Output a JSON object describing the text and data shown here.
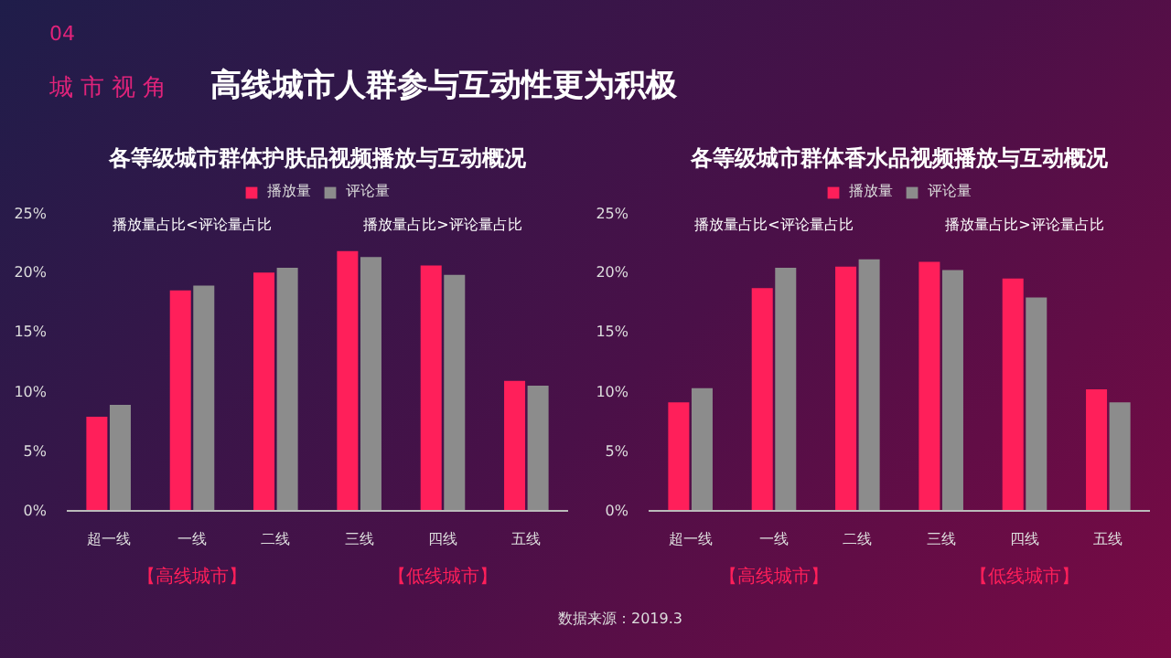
{
  "chart_data": [
    {
      "type": "other",
      "title": "高线城市人群参与互动性更为积极",
      "annotations": [
        "04",
        "城市视角"
      ]
    },
    {
      "type": "bar",
      "title": "各等级城市群体护肤品视频播放与互动概况",
      "categories": [
        "超一线",
        "一线",
        "二线",
        "三线",
        "四线",
        "五线"
      ],
      "series": [
        {
          "name": "播放量",
          "color": "#ff1f5a",
          "values": [
            7.9,
            18.5,
            20.0,
            21.8,
            20.6,
            10.9
          ]
        },
        {
          "name": "评论量",
          "color": "#8c8c8c",
          "values": [
            8.9,
            18.9,
            20.4,
            21.3,
            19.8,
            10.5
          ]
        }
      ],
      "ylim": [
        0,
        25
      ],
      "yticks": [
        {
          "value": 0,
          "label": "0%"
        },
        {
          "value": 5,
          "label": "5%"
        },
        {
          "value": 10,
          "label": "10%"
        },
        {
          "value": 15,
          "label": "15%"
        },
        {
          "value": 20,
          "label": "20%"
        },
        {
          "value": 25,
          "label": "25%"
        }
      ],
      "grid": false,
      "legend": "top",
      "annotations": [
        "播放量占比<评论量占比",
        "播放量占比>评论量占比",
        "【高线城市】",
        "【低线城市】"
      ]
    },
    {
      "type": "bar",
      "title": "各等级城市群体香水品视频播放与互动概况",
      "categories": [
        "超一线",
        "一线",
        "二线",
        "三线",
        "四线",
        "五线"
      ],
      "series": [
        {
          "name": "播放量",
          "color": "#ff1f5a",
          "values": [
            9.1,
            18.7,
            20.5,
            20.9,
            19.5,
            10.2
          ]
        },
        {
          "name": "评论量",
          "color": "#8c8c8c",
          "values": [
            10.3,
            20.4,
            21.1,
            20.2,
            17.9,
            9.1
          ]
        }
      ],
      "ylim": [
        0,
        25
      ],
      "yticks": [
        {
          "value": 0,
          "label": "0%"
        },
        {
          "value": 5,
          "label": "5%"
        },
        {
          "value": 10,
          "label": "10%"
        },
        {
          "value": 15,
          "label": "15%"
        },
        {
          "value": 20,
          "label": "20%"
        },
        {
          "value": 25,
          "label": "25%"
        }
      ],
      "grid": false,
      "legend": "top",
      "annotations": [
        "播放量占比<评论量占比",
        "播放量占比>评论量占比",
        "【高线城市】",
        "【低线城市】"
      ]
    },
    {
      "type": "other",
      "annotations": [
        "数据来源：2019.3"
      ]
    }
  ]
}
